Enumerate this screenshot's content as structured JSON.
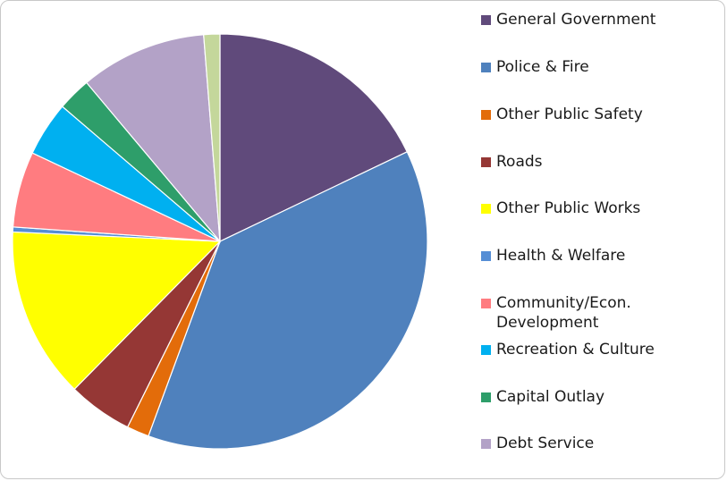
{
  "chart_data": {
    "type": "pie",
    "title": "",
    "start": "top, clockwise",
    "slices": [
      {
        "name": "General Government",
        "value": 18.5,
        "color": "#604A7B"
      },
      {
        "name": "Police & Fire",
        "value": 39.0,
        "color": "#4F81BD"
      },
      {
        "name": "Other Public Safety",
        "value": 1.8,
        "color": "#E36C0A"
      },
      {
        "name": "Roads",
        "value": 5.2,
        "color": "#953735"
      },
      {
        "name": "Other Public Works",
        "value": 13.8,
        "color": "#FFFF00"
      },
      {
        "name": "Health & Welfare",
        "value": 0.4,
        "color": "#558ED5"
      },
      {
        "name": "Community/Econ. Development",
        "value": 6.1,
        "color": "#FF7C80"
      },
      {
        "name": "Recreation & Culture",
        "value": 4.4,
        "color": "#00B0F0"
      },
      {
        "name": "Capital Outlay",
        "value": 2.7,
        "color": "#2E9E6A"
      },
      {
        "name": "Debt Service",
        "value": 10.2,
        "color": "#B3A2C7"
      },
      {
        "name": "",
        "value": 1.3,
        "color": "#C4D79B"
      }
    ],
    "legend": {
      "placement": "right",
      "entries": [
        "General Government",
        "Police & Fire",
        "Other Public Safety",
        "Roads",
        "Other Public Works",
        "Health & Welfare",
        "Community/Econ. Development",
        "Recreation & Culture",
        "Capital Outlay",
        "Debt Service"
      ]
    }
  }
}
